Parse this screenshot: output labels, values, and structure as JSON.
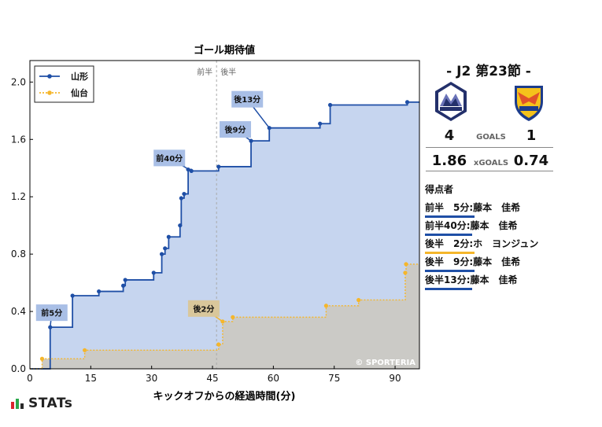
{
  "chart_data": {
    "type": "line",
    "title": "ゴール期待値",
    "xlabel": "キックオフからの経過時間(分)",
    "ylabel": "",
    "xlim": [
      0,
      96
    ],
    "ylim": [
      0,
      2.15
    ],
    "x_ticks": [
      0,
      15,
      30,
      45,
      60,
      75,
      90
    ],
    "y_ticks": [
      0.0,
      0.4,
      0.8,
      1.2,
      1.6,
      2.0
    ],
    "y_tick_labels": [
      "0.0",
      "0.4",
      "0.8",
      "1.2",
      "1.6",
      "2.0"
    ],
    "grid": false,
    "legend_position": "top-left",
    "half_divider": {
      "x": 46,
      "first_half_label": "前半",
      "second_half_label": "後半"
    },
    "watermark": "© SPORTERIA",
    "series": [
      {
        "name": "山形",
        "color": "#1f4fa6",
        "fill": "#c6d5ef",
        "style": "solid",
        "points": [
          [
            0,
            0
          ],
          [
            5,
            0.29
          ],
          [
            10.5,
            0.51
          ],
          [
            17,
            0.54
          ],
          [
            23,
            0.58
          ],
          [
            23.5,
            0.62
          ],
          [
            30.5,
            0.67
          ],
          [
            32.5,
            0.8
          ],
          [
            33.3,
            0.84
          ],
          [
            34.2,
            0.92
          ],
          [
            37,
            1.0
          ],
          [
            37.3,
            1.19
          ],
          [
            38,
            1.22
          ],
          [
            39,
            1.39
          ],
          [
            39.8,
            1.38
          ],
          [
            46.5,
            1.41
          ],
          [
            54.5,
            1.59
          ],
          [
            59,
            1.68
          ],
          [
            71.5,
            1.71
          ],
          [
            74,
            1.84
          ],
          [
            93,
            1.86
          ],
          [
            96,
            1.86
          ]
        ]
      },
      {
        "name": "仙台",
        "color": "#f5b62b",
        "fill": "#cbcac6",
        "style": "dotted",
        "points": [
          [
            0,
            0
          ],
          [
            3,
            0.07
          ],
          [
            13.5,
            0.13
          ],
          [
            46.5,
            0.17
          ],
          [
            47.5,
            0.33
          ],
          [
            50,
            0.36
          ],
          [
            73,
            0.44
          ],
          [
            81,
            0.48
          ],
          [
            92.5,
            0.67
          ],
          [
            92.7,
            0.73
          ],
          [
            96,
            0.73
          ]
        ]
      }
    ],
    "annotations": [
      {
        "text": "前5分",
        "series": 0,
        "x": 5,
        "y": 0.29
      },
      {
        "text": "前40分",
        "series": 0,
        "x": 39.8,
        "y": 1.38
      },
      {
        "text": "後9分",
        "series": 0,
        "x": 54.5,
        "y": 1.59
      },
      {
        "text": "後13分",
        "series": 0,
        "x": 59,
        "y": 1.68
      },
      {
        "text": "後2分",
        "series": 1,
        "x": 47.5,
        "y": 0.33
      }
    ]
  },
  "match": {
    "title": "- J2 第23節 -",
    "home": {
      "name": "山形",
      "goals": "4",
      "xgoals": "1.86",
      "crest_icon": "montedio-yamagata-crest-icon"
    },
    "away": {
      "name": "仙台",
      "goals": "1",
      "xgoals": "0.74",
      "crest_icon": "vegalta-sendai-crest-icon"
    },
    "goals_label": "GOALS",
    "xgoals_label": "xGOALS"
  },
  "scorers": {
    "title": "得点者",
    "items": [
      {
        "time": "前半　5分:",
        "player": "藤本　佳希",
        "team": "home"
      },
      {
        "time": "前半40分:",
        "player": "藤本　佳希",
        "team": "home"
      },
      {
        "time": "後半　2分:",
        "player": "ホ　ヨンジュン",
        "team": "away"
      },
      {
        "time": "後半　9分:",
        "player": "藤本　佳希",
        "team": "home"
      },
      {
        "time": "後半13分:",
        "player": "藤本　佳希",
        "team": "home"
      }
    ]
  },
  "brand": {
    "name": "STATs",
    "icon": "stats-bar-logo-icon"
  }
}
